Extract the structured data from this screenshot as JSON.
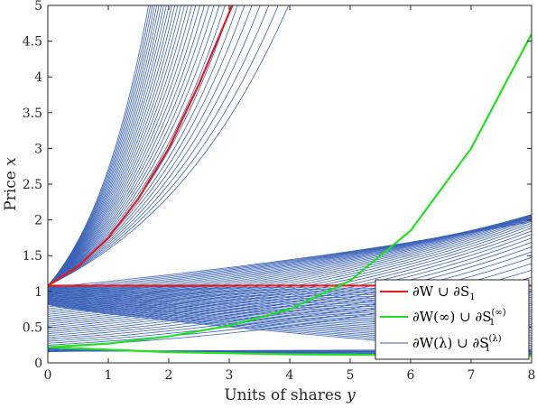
{
  "chart_data": {
    "type": "line",
    "xlabel_text": "Units of shares ",
    "xlabel_var": "y",
    "ylabel_text": "Price ",
    "ylabel_var": "x",
    "xlim": [
      0,
      8
    ],
    "ylim": [
      0,
      5
    ],
    "xticks": [
      "0",
      "1",
      "2",
      "3",
      "4",
      "5",
      "6",
      "7",
      "8"
    ],
    "yticks": [
      "0",
      "0.5",
      "1",
      "1.5",
      "2",
      "2.5",
      "3",
      "3.5",
      "4",
      "4.5",
      "5"
    ],
    "grid": false,
    "legend_position": "bottom-right",
    "colors": {
      "red": "#e41a1c",
      "green": "#22e022",
      "blue": "#3a62b8",
      "axis": "#262626"
    },
    "series": [
      {
        "name": "∂W ∪ ∂S1",
        "color": "#e41a1c",
        "curves": [
          {
            "x": [
              0,
              0.5,
              1,
              1.5,
              2,
              2.5,
              3,
              3.05
            ],
            "y": [
              1.08,
              1.35,
              1.75,
              2.3,
              3.0,
              3.9,
              4.9,
              5.0
            ]
          },
          {
            "x": [
              0,
              8
            ],
            "y": [
              1.08,
              1.08
            ]
          }
        ]
      },
      {
        "name": "∂W(∞) ∪ ∂S1(∞)",
        "color": "#22e022",
        "curves": [
          {
            "x": [
              0,
              1,
              2,
              3,
              4,
              5,
              6,
              7,
              8
            ],
            "y": [
              0.22,
              0.27,
              0.37,
              0.52,
              0.75,
              1.15,
              1.85,
              3.0,
              4.6
            ]
          },
          {
            "x": [
              0,
              2,
              4,
              6,
              8
            ],
            "y": [
              0.22,
              0.15,
              0.12,
              0.11,
              0.1
            ]
          }
        ]
      },
      {
        "name": "∂W(λ) ∪ ∂S1(λ)",
        "color": "#3a62b8",
        "family_count": 32
      }
    ],
    "legend": [
      {
        "label": "∂W ∪ ∂S",
        "sub": "1",
        "sup": "",
        "color": "#e41a1c"
      },
      {
        "label": "∂W(∞) ∪ ∂S",
        "sub": "1",
        "sup": "(∞)",
        "color": "#22e022"
      },
      {
        "label": "∂W(λ) ∪ ∂S",
        "sub": "1",
        "sup": "(λ)",
        "color": "#3a62b8"
      }
    ]
  }
}
